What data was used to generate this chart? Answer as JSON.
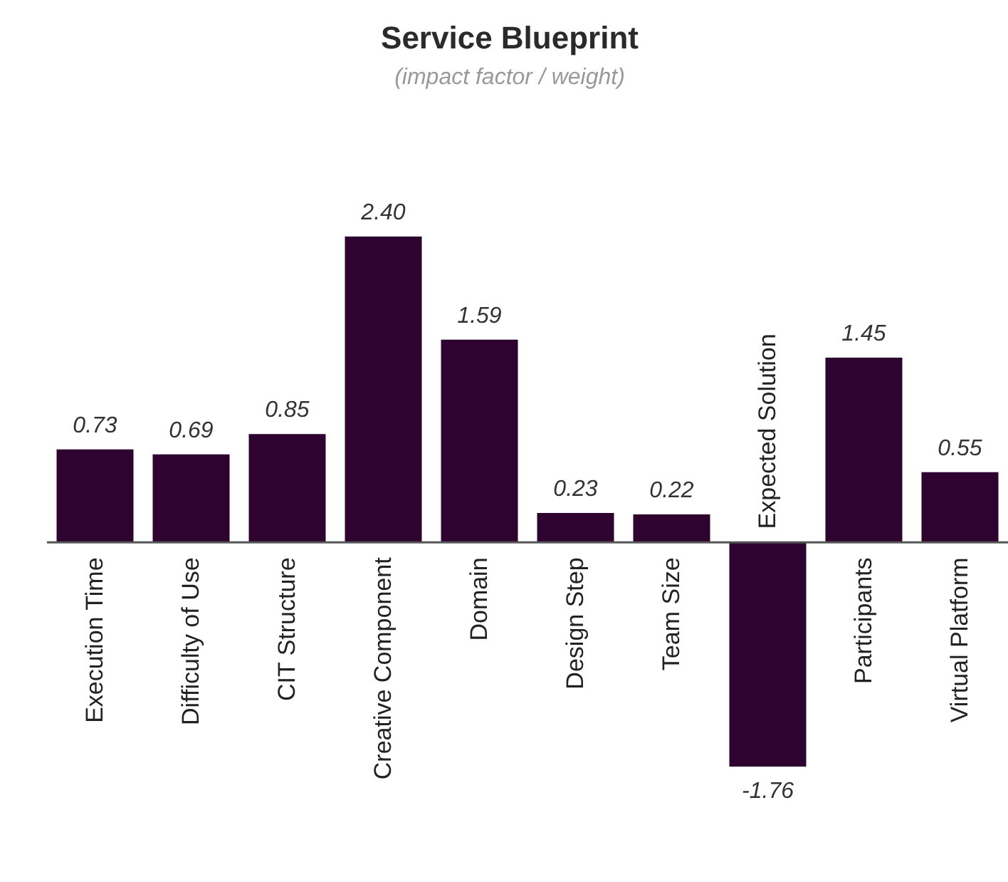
{
  "chart_data": {
    "type": "bar",
    "title": "Service Blueprint",
    "subtitle": "(impact factor / weight)",
    "categories": [
      "Execution Time",
      "Difficulty of Use",
      "CIT Structure",
      "Creative Component",
      "Domain",
      "Design Step",
      "Team Size",
      "Expected Solution",
      "Participants",
      "Virtual Platform"
    ],
    "values": [
      0.73,
      0.69,
      0.85,
      2.4,
      1.59,
      0.23,
      0.22,
      -1.76,
      1.45,
      0.55
    ],
    "value_labels": [
      "0.73",
      "0.69",
      "0.85",
      "2.40",
      "1.59",
      "0.23",
      "0.22",
      "-1.76",
      "1.45",
      "0.55"
    ],
    "color": "#2e0330"
  }
}
